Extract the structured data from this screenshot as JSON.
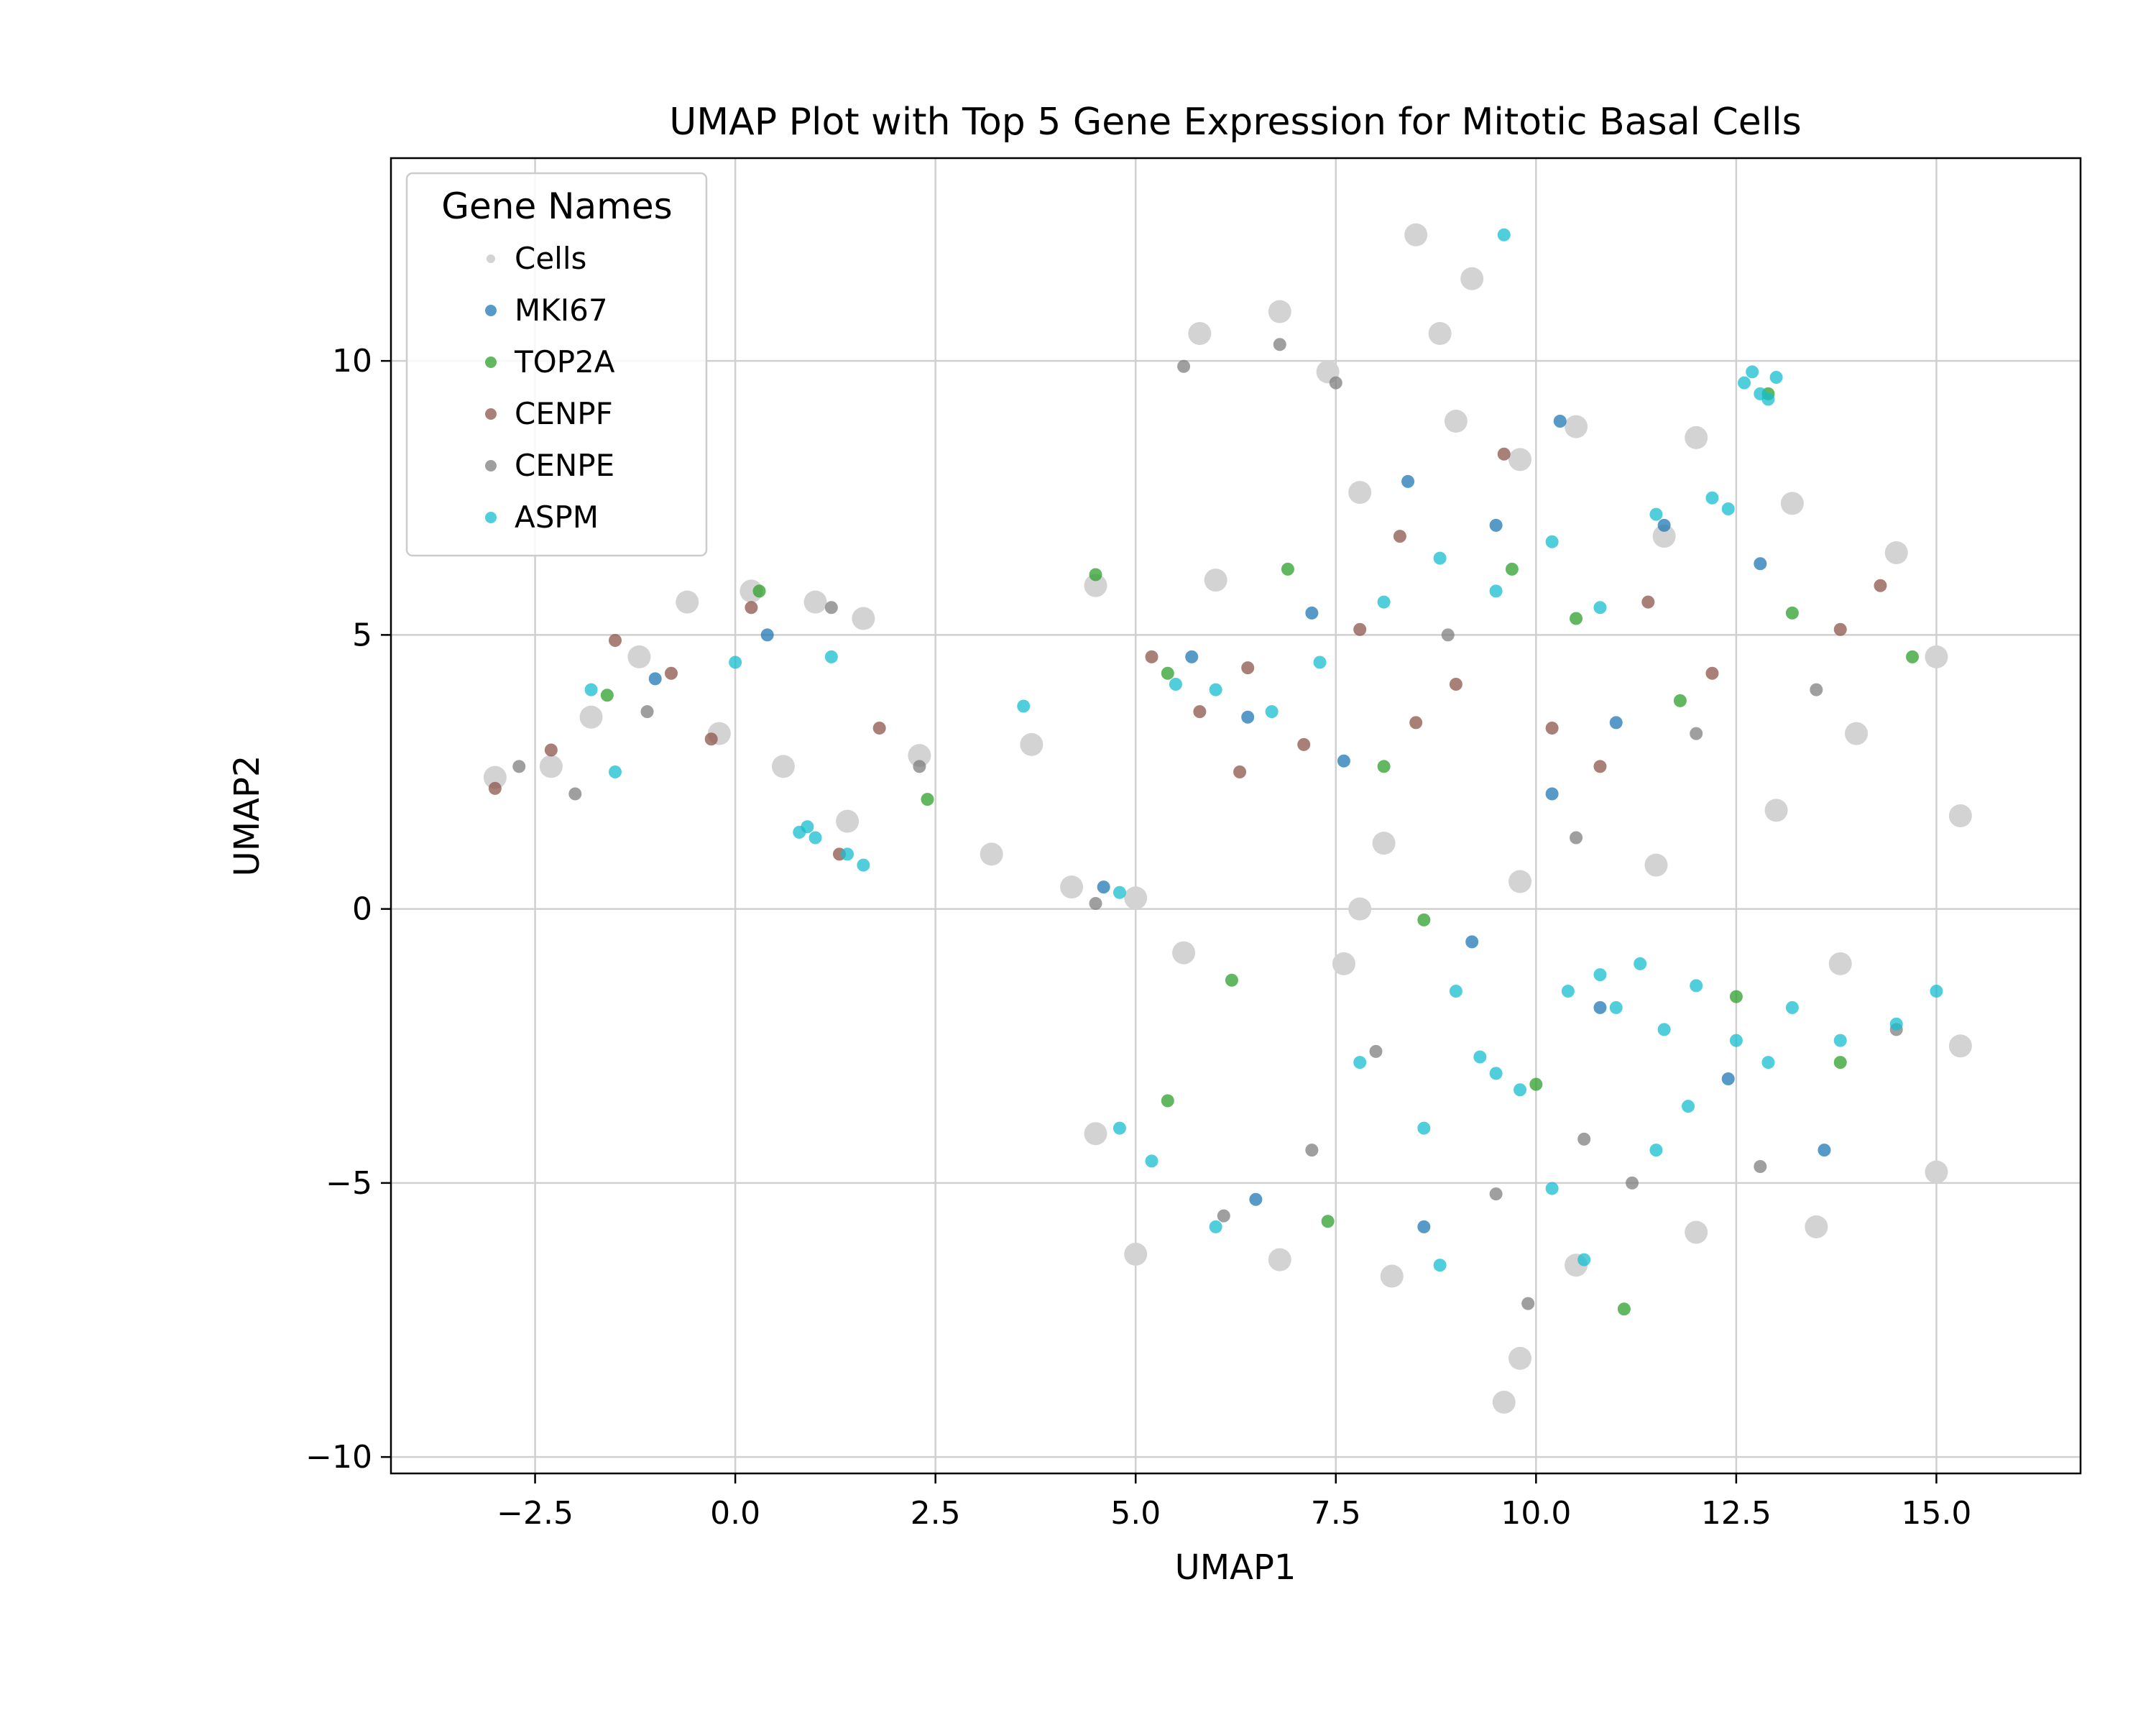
{
  "chart_data": {
    "type": "scatter",
    "title": "UMAP Plot with Top 5 Gene Expression for Mitotic Basal Cells",
    "xlabel": "UMAP1",
    "ylabel": "UMAP2",
    "xlim": [
      -4.3,
      16.8
    ],
    "ylim": [
      -10.3,
      13.7
    ],
    "xticks": [
      -2.5,
      0.0,
      2.5,
      5.0,
      7.5,
      10.0,
      12.5,
      15.0
    ],
    "xtick_labels": [
      "−2.5",
      "0.0",
      "2.5",
      "5.0",
      "7.5",
      "10.0",
      "12.5",
      "15.0"
    ],
    "yticks": [
      -10,
      -5,
      0,
      5,
      10
    ],
    "ytick_labels": [
      "−10",
      "−5",
      "0",
      "5",
      "10"
    ],
    "grid": true,
    "legend": {
      "title": "Gene Names",
      "position": "upper-left",
      "entries": [
        "Cells",
        "MKI67",
        "TOP2A",
        "CENPF",
        "CENPE",
        "ASPM"
      ]
    },
    "series": [
      {
        "name": "Cells",
        "color": "#d3d3d3",
        "points": [
          [
            -3.0,
            2.4
          ],
          [
            -2.3,
            2.6
          ],
          [
            -1.8,
            3.5
          ],
          [
            -1.2,
            4.6
          ],
          [
            -0.6,
            5.6
          ],
          [
            0.2,
            5.8
          ],
          [
            1.0,
            5.6
          ],
          [
            1.6,
            5.3
          ],
          [
            -0.2,
            3.2
          ],
          [
            0.6,
            2.6
          ],
          [
            1.4,
            1.6
          ],
          [
            2.3,
            2.8
          ],
          [
            3.2,
            1.0
          ],
          [
            4.2,
            0.4
          ],
          [
            5.0,
            0.2
          ],
          [
            5.6,
            -0.8
          ],
          [
            3.7,
            3.0
          ],
          [
            4.5,
            5.9
          ],
          [
            5.8,
            10.5
          ],
          [
            6.8,
            10.9
          ],
          [
            7.4,
            9.8
          ],
          [
            8.5,
            12.3
          ],
          [
            8.8,
            10.5
          ],
          [
            9.2,
            11.5
          ],
          [
            10.5,
            8.8
          ],
          [
            12.0,
            8.6
          ],
          [
            13.2,
            7.4
          ],
          [
            14.5,
            6.5
          ],
          [
            15.0,
            4.6
          ],
          [
            14.0,
            3.2
          ],
          [
            13.0,
            1.8
          ],
          [
            15.3,
            1.7
          ],
          [
            11.5,
            0.8
          ],
          [
            13.8,
            -1.0
          ],
          [
            15.3,
            -2.5
          ],
          [
            15.0,
            -4.8
          ],
          [
            13.5,
            -5.8
          ],
          [
            12.0,
            -5.9
          ],
          [
            10.5,
            -6.5
          ],
          [
            9.8,
            -8.2
          ],
          [
            9.6,
            -9.0
          ],
          [
            8.2,
            -6.7
          ],
          [
            6.8,
            -6.4
          ],
          [
            5.0,
            -6.3
          ],
          [
            4.5,
            -4.1
          ],
          [
            7.6,
            -1.0
          ],
          [
            7.8,
            0.0
          ],
          [
            6.0,
            6.0
          ],
          [
            7.8,
            7.6
          ],
          [
            9.0,
            8.9
          ],
          [
            9.8,
            8.2
          ],
          [
            11.6,
            6.8
          ],
          [
            8.1,
            1.2
          ],
          [
            9.8,
            0.5
          ]
        ]
      },
      {
        "name": "MKI67",
        "color": "#1f77b4",
        "points": [
          [
            -1.0,
            4.2
          ],
          [
            0.4,
            5.0
          ],
          [
            4.6,
            0.4
          ],
          [
            5.7,
            4.6
          ],
          [
            6.4,
            3.5
          ],
          [
            7.2,
            5.4
          ],
          [
            8.4,
            7.8
          ],
          [
            9.5,
            7.0
          ],
          [
            10.3,
            8.9
          ],
          [
            11.0,
            3.4
          ],
          [
            11.6,
            7.0
          ],
          [
            12.8,
            6.3
          ],
          [
            9.2,
            -0.6
          ],
          [
            10.8,
            -1.8
          ],
          [
            12.4,
            -3.1
          ],
          [
            6.5,
            -5.3
          ],
          [
            7.6,
            2.7
          ],
          [
            13.6,
            -4.4
          ],
          [
            8.6,
            -5.8
          ],
          [
            10.2,
            2.1
          ]
        ]
      },
      {
        "name": "TOP2A",
        "color": "#2ca02c",
        "points": [
          [
            -1.6,
            3.9
          ],
          [
            0.3,
            5.8
          ],
          [
            2.4,
            2.0
          ],
          [
            4.5,
            6.1
          ],
          [
            5.4,
            4.3
          ],
          [
            6.9,
            6.2
          ],
          [
            8.1,
            2.6
          ],
          [
            9.7,
            6.2
          ],
          [
            10.5,
            5.3
          ],
          [
            11.8,
            3.8
          ],
          [
            13.2,
            5.4
          ],
          [
            14.7,
            4.6
          ],
          [
            6.2,
            -1.3
          ],
          [
            8.6,
            -0.2
          ],
          [
            10.0,
            -3.2
          ],
          [
            11.1,
            -7.3
          ],
          [
            12.5,
            -1.6
          ],
          [
            13.8,
            -2.8
          ],
          [
            5.4,
            -3.5
          ],
          [
            7.4,
            -5.7
          ],
          [
            12.9,
            9.4
          ]
        ]
      },
      {
        "name": "CENPF",
        "color": "#8c564b",
        "points": [
          [
            -3.0,
            2.2
          ],
          [
            -2.3,
            2.9
          ],
          [
            -1.5,
            4.9
          ],
          [
            -0.8,
            4.3
          ],
          [
            -0.3,
            3.1
          ],
          [
            0.2,
            5.5
          ],
          [
            1.3,
            1.0
          ],
          [
            1.8,
            3.3
          ],
          [
            5.2,
            4.6
          ],
          [
            5.8,
            3.6
          ],
          [
            6.4,
            4.4
          ],
          [
            7.1,
            3.0
          ],
          [
            7.8,
            5.1
          ],
          [
            8.3,
            6.8
          ],
          [
            9.0,
            4.1
          ],
          [
            9.6,
            8.3
          ],
          [
            10.2,
            3.3
          ],
          [
            10.8,
            2.6
          ],
          [
            11.4,
            5.6
          ],
          [
            12.2,
            4.3
          ],
          [
            13.8,
            5.1
          ],
          [
            14.3,
            5.9
          ],
          [
            8.5,
            3.4
          ],
          [
            6.3,
            2.5
          ]
        ]
      },
      {
        "name": "CENPE",
        "color": "#7f7f7f",
        "points": [
          [
            -2.7,
            2.6
          ],
          [
            -2.0,
            2.1
          ],
          [
            -1.1,
            3.6
          ],
          [
            1.2,
            5.5
          ],
          [
            2.3,
            2.6
          ],
          [
            4.5,
            0.1
          ],
          [
            5.6,
            9.9
          ],
          [
            6.8,
            10.3
          ],
          [
            7.5,
            9.6
          ],
          [
            8.9,
            5.0
          ],
          [
            10.5,
            1.3
          ],
          [
            12.0,
            3.2
          ],
          [
            13.5,
            4.0
          ],
          [
            9.5,
            -5.2
          ],
          [
            11.2,
            -5.0
          ],
          [
            12.8,
            -4.7
          ],
          [
            14.5,
            -2.2
          ],
          [
            7.2,
            -4.4
          ],
          [
            8.0,
            -2.6
          ],
          [
            9.9,
            -7.2
          ],
          [
            10.6,
            -4.2
          ],
          [
            6.1,
            -5.6
          ]
        ]
      },
      {
        "name": "ASPM",
        "color": "#17becf",
        "points": [
          [
            -1.8,
            4.0
          ],
          [
            -1.5,
            2.5
          ],
          [
            0.0,
            4.5
          ],
          [
            1.2,
            4.6
          ],
          [
            0.8,
            1.4
          ],
          [
            1.0,
            1.3
          ],
          [
            0.9,
            1.5
          ],
          [
            1.4,
            1.0
          ],
          [
            1.6,
            0.8
          ],
          [
            3.6,
            3.7
          ],
          [
            4.8,
            0.3
          ],
          [
            5.5,
            4.1
          ],
          [
            6.0,
            4.0
          ],
          [
            6.7,
            3.6
          ],
          [
            7.3,
            4.5
          ],
          [
            8.1,
            5.6
          ],
          [
            8.8,
            6.4
          ],
          [
            9.5,
            5.8
          ],
          [
            10.2,
            6.7
          ],
          [
            10.8,
            5.5
          ],
          [
            11.5,
            7.2
          ],
          [
            12.2,
            7.5
          ],
          [
            12.4,
            7.3
          ],
          [
            12.6,
            9.6
          ],
          [
            12.8,
            9.4
          ],
          [
            13.0,
            9.7
          ],
          [
            12.9,
            9.3
          ],
          [
            12.7,
            9.8
          ],
          [
            9.6,
            12.3
          ],
          [
            9.5,
            -3.0
          ],
          [
            9.8,
            -3.3
          ],
          [
            9.3,
            -2.7
          ],
          [
            10.4,
            -1.5
          ],
          [
            10.8,
            -1.2
          ],
          [
            11.0,
            -1.8
          ],
          [
            11.3,
            -1.0
          ],
          [
            11.6,
            -2.2
          ],
          [
            12.0,
            -1.4
          ],
          [
            12.5,
            -2.4
          ],
          [
            13.2,
            -1.8
          ],
          [
            13.8,
            -2.4
          ],
          [
            14.5,
            -2.1
          ],
          [
            15.0,
            -1.5
          ],
          [
            7.8,
            -2.8
          ],
          [
            8.6,
            -4.0
          ],
          [
            10.2,
            -5.1
          ],
          [
            11.5,
            -4.4
          ],
          [
            4.8,
            -4.0
          ],
          [
            5.2,
            -4.6
          ],
          [
            6.0,
            -5.8
          ],
          [
            8.8,
            -6.5
          ],
          [
            10.6,
            -6.4
          ],
          [
            12.9,
            -2.8
          ],
          [
            11.9,
            -3.6
          ],
          [
            9.0,
            -1.5
          ]
        ]
      }
    ]
  }
}
